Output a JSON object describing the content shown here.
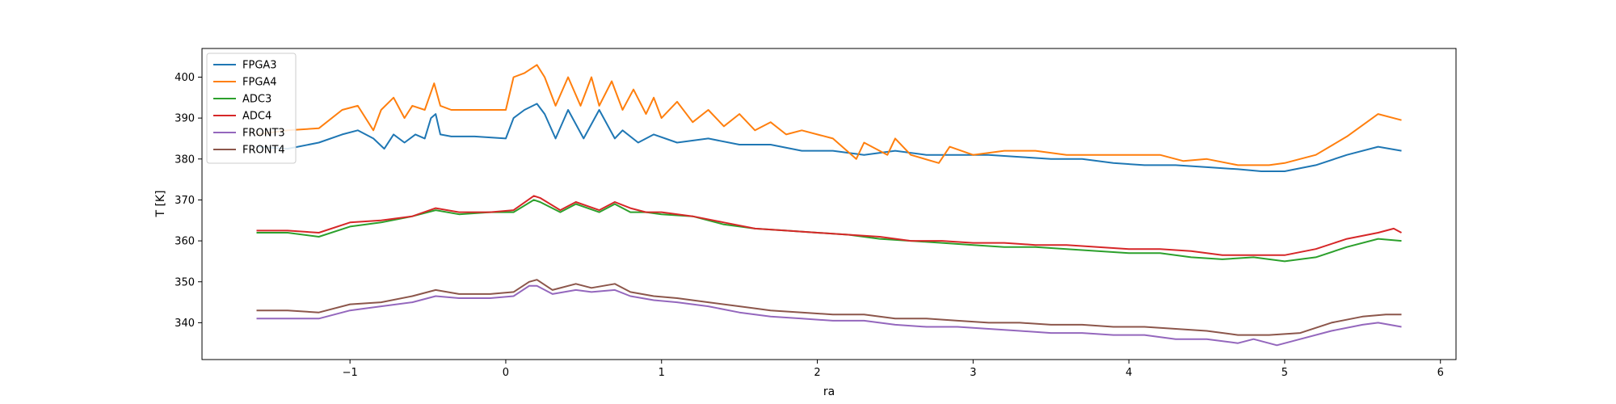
{
  "chart_data": {
    "type": "line",
    "xlabel": "ra",
    "ylabel": "T [K]",
    "xlim": [
      -1.95,
      6.1
    ],
    "ylim": [
      331,
      407
    ],
    "xticks": [
      -1,
      0,
      1,
      2,
      3,
      4,
      5,
      6
    ],
    "xtick_labels": [
      "−1",
      "0",
      "1",
      "2",
      "3",
      "4",
      "5",
      "6"
    ],
    "yticks": [
      340,
      350,
      360,
      370,
      380,
      390,
      400
    ],
    "ytick_labels": [
      "340",
      "350",
      "360",
      "370",
      "380",
      "390",
      "400"
    ],
    "grid": false,
    "legend_position": "top-left",
    "series": [
      {
        "name": "FPGA3",
        "color": "#1f77b4",
        "x": [
          -1.6,
          -1.4,
          -1.2,
          -1.05,
          -0.95,
          -0.85,
          -0.78,
          -0.72,
          -0.65,
          -0.58,
          -0.52,
          -0.48,
          -0.45,
          -0.42,
          -0.35,
          -0.2,
          0.0,
          0.05,
          0.12,
          0.2,
          0.25,
          0.32,
          0.4,
          0.5,
          0.6,
          0.7,
          0.75,
          0.85,
          0.95,
          1.1,
          1.3,
          1.5,
          1.7,
          1.9,
          2.1,
          2.3,
          2.5,
          2.7,
          2.9,
          3.1,
          3.3,
          3.5,
          3.7,
          3.9,
          4.1,
          4.3,
          4.5,
          4.7,
          4.85,
          5.0,
          5.2,
          5.4,
          5.6,
          5.75
        ],
        "y": [
          383,
          382.5,
          384,
          386,
          387,
          385,
          382.5,
          386,
          384,
          386,
          385,
          390,
          391,
          386,
          385.5,
          385.5,
          385,
          390,
          392,
          393.5,
          391,
          385,
          392,
          385,
          392,
          385,
          387,
          384,
          386,
          384,
          385,
          383.5,
          383.5,
          382,
          382,
          381,
          382,
          381,
          381,
          381,
          380.5,
          380,
          380,
          379,
          378.5,
          378.5,
          378,
          377.5,
          377,
          377,
          378.5,
          381,
          383,
          382
        ]
      },
      {
        "name": "FPGA4",
        "color": "#ff7f0e",
        "x": [
          -1.6,
          -1.4,
          -1.2,
          -1.05,
          -0.95,
          -0.85,
          -0.8,
          -0.72,
          -0.65,
          -0.6,
          -0.52,
          -0.46,
          -0.42,
          -0.35,
          -0.2,
          0.0,
          0.05,
          0.12,
          0.2,
          0.25,
          0.32,
          0.4,
          0.48,
          0.55,
          0.6,
          0.68,
          0.75,
          0.82,
          0.9,
          0.95,
          1.0,
          1.1,
          1.2,
          1.3,
          1.4,
          1.5,
          1.6,
          1.7,
          1.8,
          1.9,
          2.1,
          2.25,
          2.3,
          2.45,
          2.5,
          2.6,
          2.78,
          2.85,
          3.0,
          3.2,
          3.4,
          3.6,
          3.8,
          4.0,
          4.2,
          4.35,
          4.5,
          4.7,
          4.9,
          5.0,
          5.2,
          5.4,
          5.6,
          5.75
        ],
        "y": [
          386,
          387,
          387.5,
          392,
          393,
          387,
          392,
          395,
          390,
          393,
          392,
          398.5,
          393,
          392,
          392,
          392,
          400,
          401,
          403,
          400,
          393,
          400,
          393,
          400,
          393,
          399,
          392,
          397,
          391,
          395,
          390,
          394,
          389,
          392,
          388,
          391,
          387,
          389,
          386,
          387,
          385,
          380,
          384,
          381,
          385,
          381,
          379,
          383,
          381,
          382,
          382,
          381,
          381,
          381,
          381,
          379.5,
          380,
          378.5,
          378.5,
          379,
          381,
          385.5,
          391,
          389.5
        ]
      },
      {
        "name": "ADC3",
        "color": "#2ca02c",
        "x": [
          -1.6,
          -1.4,
          -1.2,
          -1.0,
          -0.8,
          -0.6,
          -0.45,
          -0.3,
          -0.1,
          0.05,
          0.18,
          0.22,
          0.35,
          0.45,
          0.6,
          0.7,
          0.8,
          0.9,
          1.0,
          1.2,
          1.4,
          1.6,
          1.8,
          2.0,
          2.2,
          2.4,
          2.6,
          2.8,
          3.0,
          3.2,
          3.4,
          3.6,
          3.8,
          4.0,
          4.2,
          4.4,
          4.6,
          4.8,
          5.0,
          5.2,
          5.4,
          5.6,
          5.75
        ],
        "y": [
          362,
          362,
          361,
          363.5,
          364.5,
          366,
          367.5,
          366.5,
          367,
          367,
          370,
          369.5,
          367,
          369,
          367,
          369,
          367,
          367,
          366.5,
          366,
          364,
          363,
          362.5,
          362,
          361.5,
          360.5,
          360,
          359.5,
          359,
          358.5,
          358.5,
          358,
          357.5,
          357,
          357,
          356,
          355.5,
          356,
          355,
          356,
          358.5,
          360.5,
          360
        ]
      },
      {
        "name": "ADC4",
        "color": "#d62728",
        "x": [
          -1.6,
          -1.4,
          -1.2,
          -1.0,
          -0.8,
          -0.6,
          -0.45,
          -0.3,
          -0.1,
          0.05,
          0.18,
          0.22,
          0.35,
          0.45,
          0.6,
          0.7,
          0.8,
          0.9,
          1.0,
          1.2,
          1.4,
          1.6,
          1.8,
          2.0,
          2.2,
          2.4,
          2.6,
          2.8,
          3.0,
          3.2,
          3.4,
          3.6,
          3.8,
          4.0,
          4.2,
          4.4,
          4.6,
          4.8,
          5.0,
          5.2,
          5.4,
          5.6,
          5.7,
          5.75
        ],
        "y": [
          362.5,
          362.5,
          362,
          364.5,
          365,
          366,
          368,
          367,
          367,
          367.5,
          371,
          370.5,
          367.5,
          369.5,
          367.5,
          369.5,
          368,
          367,
          367,
          366,
          364.5,
          363,
          362.5,
          362,
          361.5,
          361,
          360,
          360,
          359.5,
          359.5,
          359,
          359,
          358.5,
          358,
          358,
          357.5,
          356.5,
          356.5,
          356.5,
          358,
          360.5,
          362,
          363,
          362
        ]
      },
      {
        "name": "FRONT3",
        "color": "#9467bd",
        "x": [
          -1.6,
          -1.4,
          -1.2,
          -1.0,
          -0.8,
          -0.6,
          -0.45,
          -0.3,
          -0.1,
          0.05,
          0.15,
          0.2,
          0.3,
          0.45,
          0.55,
          0.7,
          0.8,
          0.95,
          1.1,
          1.3,
          1.5,
          1.7,
          1.9,
          2.1,
          2.3,
          2.5,
          2.7,
          2.9,
          3.1,
          3.3,
          3.5,
          3.7,
          3.9,
          4.1,
          4.3,
          4.5,
          4.7,
          4.8,
          4.95,
          5.1,
          5.3,
          5.5,
          5.6,
          5.75
        ],
        "y": [
          341,
          341,
          341,
          343,
          344,
          345,
          346.5,
          346,
          346,
          346.5,
          349,
          349,
          347,
          348,
          347.5,
          348,
          346.5,
          345.5,
          345,
          344,
          342.5,
          341.5,
          341,
          340.5,
          340.5,
          339.5,
          339,
          339,
          338.5,
          338,
          337.5,
          337.5,
          337,
          337,
          336,
          336,
          335,
          336,
          334.5,
          336,
          338,
          339.5,
          340,
          339
        ]
      },
      {
        "name": "FRONT4",
        "color": "#8c564b",
        "x": [
          -1.6,
          -1.4,
          -1.2,
          -1.0,
          -0.8,
          -0.6,
          -0.45,
          -0.3,
          -0.1,
          0.05,
          0.15,
          0.2,
          0.3,
          0.45,
          0.55,
          0.7,
          0.8,
          0.95,
          1.1,
          1.3,
          1.5,
          1.7,
          1.9,
          2.1,
          2.3,
          2.5,
          2.7,
          2.9,
          3.1,
          3.3,
          3.5,
          3.7,
          3.9,
          4.1,
          4.3,
          4.5,
          4.7,
          4.9,
          5.1,
          5.3,
          5.5,
          5.65,
          5.75
        ],
        "y": [
          343,
          343,
          342.5,
          344.5,
          345,
          346.5,
          348,
          347,
          347,
          347.5,
          350,
          350.5,
          348,
          349.5,
          348.5,
          349.5,
          347.5,
          346.5,
          346,
          345,
          344,
          343,
          342.5,
          342,
          342,
          341,
          341,
          340.5,
          340,
          340,
          339.5,
          339.5,
          339,
          339,
          338.5,
          338,
          337,
          337,
          337.5,
          340,
          341.5,
          342,
          342
        ]
      }
    ]
  }
}
